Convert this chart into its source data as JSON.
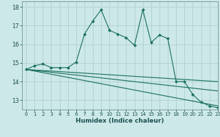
{
  "xlabel": "Humidex (Indice chaleur)",
  "xlim": [
    -0.5,
    23
  ],
  "ylim": [
    12.5,
    18.3
  ],
  "yticks": [
    13,
    14,
    15,
    16,
    17,
    18
  ],
  "xticks": [
    0,
    1,
    2,
    3,
    4,
    5,
    6,
    7,
    8,
    9,
    10,
    11,
    12,
    13,
    14,
    15,
    16,
    17,
    18,
    19,
    20,
    21,
    22,
    23
  ],
  "bg_color": "#cde8e8",
  "grid_color": "#aecece",
  "line_color": "#1a7060",
  "line1_x": [
    0,
    1,
    2,
    3,
    4,
    5,
    6,
    7,
    8,
    9,
    10,
    11,
    12,
    13,
    14,
    15,
    16,
    17,
    18,
    19,
    20,
    21,
    22,
    23
  ],
  "line1_y": [
    14.65,
    14.85,
    14.95,
    14.75,
    14.75,
    14.75,
    15.05,
    16.55,
    17.25,
    17.85,
    16.75,
    16.55,
    16.35,
    15.95,
    17.85,
    16.1,
    16.5,
    16.3,
    14.0,
    14.0,
    13.3,
    12.9,
    12.7,
    12.6
  ],
  "line2_x": [
    0,
    23
  ],
  "line2_y": [
    14.65,
    14.0
  ],
  "line3_x": [
    0,
    23
  ],
  "line3_y": [
    14.65,
    13.5
  ],
  "line4_x": [
    0,
    23
  ],
  "line4_y": [
    14.65,
    12.7
  ]
}
